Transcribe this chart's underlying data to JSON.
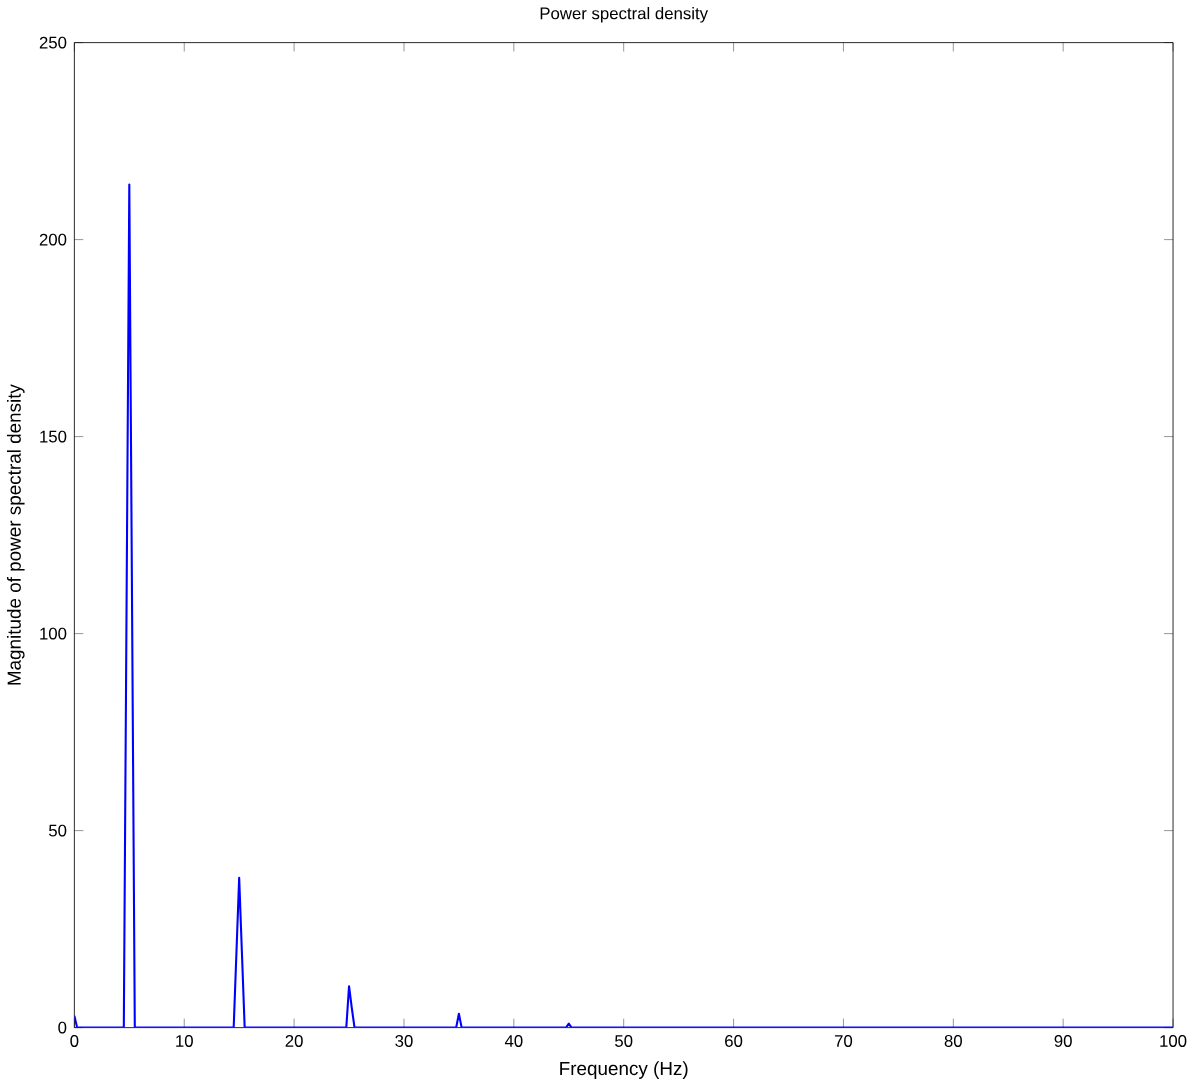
{
  "chart_data": {
    "type": "line",
    "title": "Power spectral density",
    "xlabel": "Frequency (Hz)",
    "ylabel": "Magnitude of power spectral density",
    "x": [
      0,
      0.25,
      4.5,
      4.75,
      5,
      5.25,
      5.5,
      14.5,
      14.75,
      15,
      15.25,
      15.5,
      24.75,
      25,
      25.25,
      25.5,
      34.75,
      35,
      35.25,
      44.75,
      45,
      45.25,
      100
    ],
    "series": [
      {
        "color": "#0000ff",
        "values": [
          3,
          0,
          0,
          107,
          214,
          107,
          0,
          0,
          19,
          38,
          19,
          0,
          0,
          10.5,
          5,
          0,
          0,
          3.5,
          0,
          0,
          1,
          0,
          0
        ]
      }
    ],
    "xlim": [
      0,
      100
    ],
    "ylim": [
      0,
      250
    ],
    "xticks": [
      0,
      10,
      20,
      30,
      40,
      50,
      60,
      70,
      80,
      90,
      100
    ],
    "yticks": [
      0,
      50,
      100,
      150,
      200,
      250
    ],
    "grid": false,
    "marker": "none",
    "line_style": "solid"
  }
}
